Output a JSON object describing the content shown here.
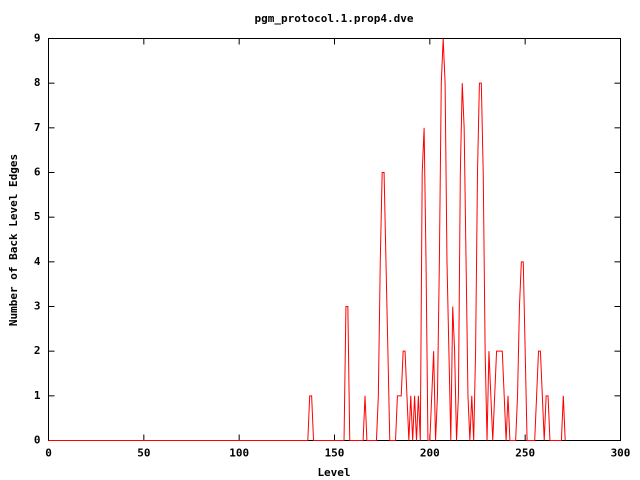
{
  "chart_data": {
    "type": "line",
    "title": "pgm_protocol.1.prop4.dve",
    "x_label": "Level",
    "y_label": "Number of Back Level Edges",
    "x": [
      0,
      136,
      137,
      138,
      139,
      155,
      156,
      157,
      158,
      165,
      166,
      167,
      172,
      173,
      174,
      175,
      176,
      177,
      178,
      179,
      180,
      181,
      182,
      183,
      184,
      185,
      186,
      187,
      188,
      189,
      190,
      191,
      192,
      193,
      194,
      195,
      196,
      197,
      198,
      199,
      200,
      201,
      202,
      203,
      204,
      205,
      206,
      207,
      208,
      209,
      210,
      211,
      212,
      213,
      214,
      215,
      216,
      217,
      218,
      219,
      220,
      221,
      222,
      223,
      224,
      225,
      226,
      227,
      228,
      229,
      230,
      231,
      232,
      233,
      234,
      235,
      236,
      237,
      238,
      239,
      240,
      241,
      242,
      243,
      244,
      245,
      246,
      247,
      248,
      249,
      250,
      251,
      252,
      253,
      254,
      255,
      256,
      257,
      258,
      259,
      260,
      261,
      262,
      263,
      264,
      265,
      266,
      267,
      268,
      269,
      270,
      271
    ],
    "series": [
      {
        "color": "#ff0000",
        "values": [
          0,
          0,
          1,
          1,
          0,
          0,
          3,
          3,
          0,
          0,
          1,
          0,
          0,
          1,
          4,
          6,
          6,
          4,
          2,
          0,
          0,
          0,
          0,
          1,
          1,
          1,
          2,
          2,
          1,
          0,
          1,
          0,
          1,
          0,
          1,
          0,
          6,
          7,
          4,
          0,
          0,
          1,
          2,
          0,
          1,
          4,
          8,
          9,
          8,
          4,
          2,
          0,
          3,
          2,
          0,
          1,
          6,
          8,
          7,
          4,
          1,
          0,
          1,
          0,
          2,
          6,
          8,
          8,
          6,
          2,
          0,
          2,
          1,
          0,
          1,
          2,
          2,
          2,
          2,
          1,
          0,
          1,
          0,
          0,
          0,
          0,
          1,
          3,
          4,
          4,
          2,
          0,
          0,
          0,
          0,
          0,
          1,
          2,
          2,
          1,
          0,
          1,
          1,
          0,
          0,
          0,
          0,
          0,
          0,
          0,
          1,
          0
        ]
      }
    ],
    "xlim": [
      0,
      300
    ],
    "ylim": [
      0,
      9
    ],
    "xticks": [
      0,
      50,
      100,
      150,
      200,
      250,
      300
    ],
    "yticks": [
      0,
      1,
      2,
      3,
      4,
      5,
      6,
      7,
      8,
      9
    ]
  }
}
